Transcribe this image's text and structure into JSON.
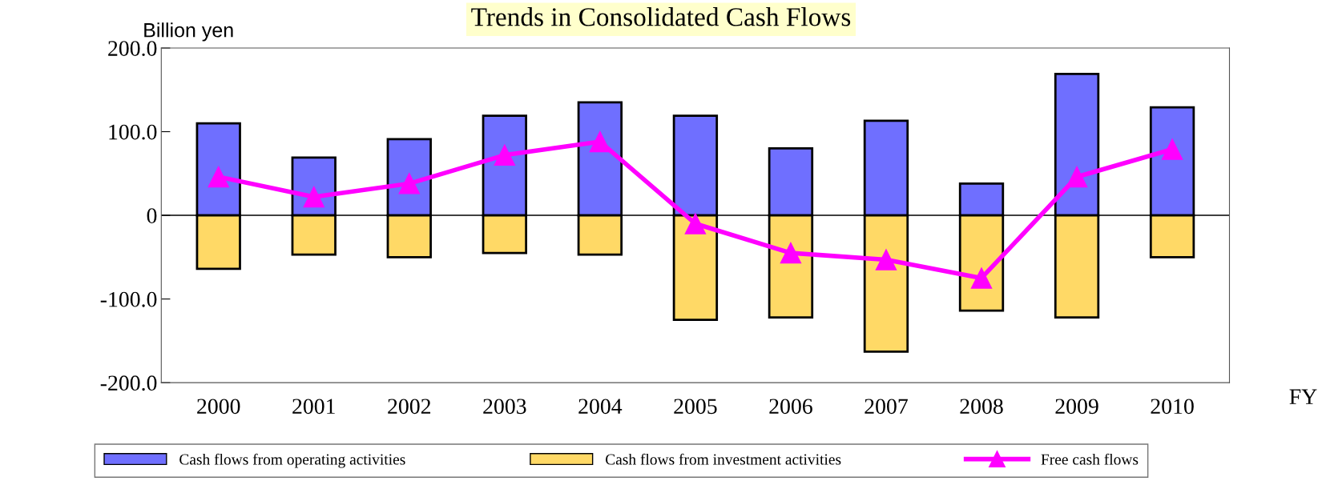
{
  "chart_data": {
    "type": "bar",
    "title": "Trends in Consolidated Cash Flows",
    "ylabel": "Billion yen",
    "xlabel": "FY",
    "categories": [
      "2000",
      "2001",
      "2002",
      "2003",
      "2004",
      "2005",
      "2006",
      "2007",
      "2008",
      "2009",
      "2010"
    ],
    "series": [
      {
        "name": "Cash flows from operating activities",
        "color": "#6f6fff",
        "values": [
          110,
          69,
          91,
          119,
          135,
          119,
          80,
          113,
          38,
          169,
          129
        ]
      },
      {
        "name": "Cash flows from investment activities",
        "color": "#ffd966",
        "values": [
          -64,
          -47,
          -50,
          -45,
          -47,
          -125,
          -122,
          -163,
          -114,
          -122,
          -50
        ]
      },
      {
        "name": "Free cash flows",
        "type": "line",
        "color": "#ff00ff",
        "marker": "triangle",
        "values": [
          46,
          22,
          38,
          72,
          88,
          -10,
          -45,
          -53,
          -75,
          46,
          79
        ]
      }
    ],
    "ylim": [
      -200,
      200
    ],
    "yticks": [
      {
        "value": -200,
        "label": "-200.0"
      },
      {
        "value": -100,
        "label": "-100.0"
      },
      0,
      {
        "value": 100,
        "label": "100.0"
      },
      {
        "value": 200,
        "label": "200.0"
      }
    ],
    "stacked": true,
    "ref_lines": [
      {
        "axis": "y",
        "value": 0,
        "color": "#000000"
      }
    ],
    "grid": false,
    "legend": "bottom"
  }
}
